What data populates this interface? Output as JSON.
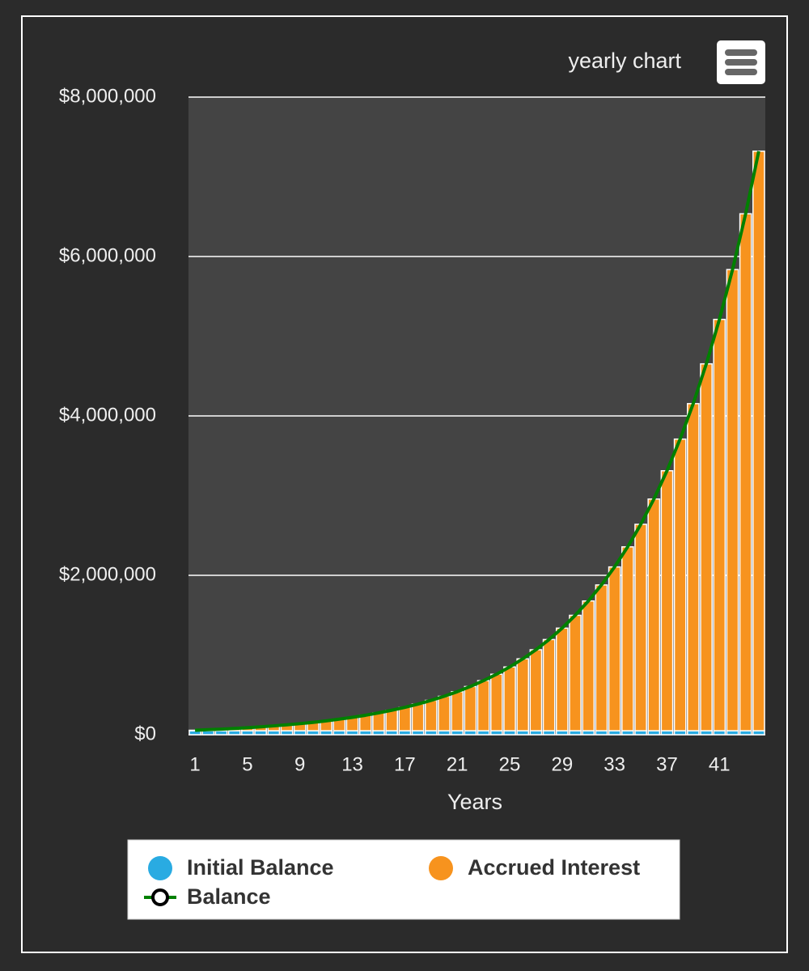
{
  "chart_data": {
    "type": "bar",
    "stacked": true,
    "title": "yearly chart",
    "x_label": "Years",
    "categories": [
      1,
      null,
      null,
      null,
      5,
      null,
      null,
      null,
      9,
      null,
      null,
      null,
      13,
      null,
      null,
      null,
      17,
      null,
      null,
      null,
      21,
      null,
      null,
      null,
      25,
      null,
      null,
      null,
      29,
      null,
      null,
      null,
      33,
      null,
      null,
      null,
      37,
      null,
      null,
      null,
      41,
      null,
      null,
      null
    ],
    "series": [
      {
        "name": "Initial Balance",
        "type": "bar",
        "color": "#29abe2",
        "values": [
          50000,
          50000,
          50000,
          50000,
          50000,
          50000,
          50000,
          50000,
          50000,
          50000,
          50000,
          50000,
          50000,
          50000,
          50000,
          50000,
          50000,
          50000,
          50000,
          50000,
          50000,
          50000,
          50000,
          50000,
          50000,
          50000,
          50000,
          50000,
          50000,
          50000,
          50000,
          50000,
          50000,
          50000,
          50000,
          50000,
          50000,
          50000,
          50000,
          50000,
          50000,
          50000,
          50000,
          50000
        ]
      },
      {
        "name": "Accrued Interest",
        "type": "bar",
        "color": "#f7931e",
        "values": [
          6000,
          13000,
          20000,
          29000,
          38000,
          49000,
          61000,
          74000,
          89000,
          105000,
          124000,
          145000,
          168000,
          194000,
          224000,
          257000,
          293000,
          334000,
          381000,
          432000,
          490000,
          555000,
          628000,
          709000,
          800000,
          902000,
          1016000,
          1144000,
          1287000,
          1448000,
          1628000,
          1829000,
          2055000,
          2307000,
          2590000,
          2907000,
          3262000,
          3659000,
          4104000,
          4603000,
          5161000,
          5786000,
          6486000,
          7271000
        ]
      },
      {
        "name": "Balance",
        "type": "line",
        "color": "#008000",
        "values": [
          56000,
          63000,
          70000,
          79000,
          88000,
          99000,
          111000,
          124000,
          139000,
          155000,
          174000,
          195000,
          218000,
          244000,
          274000,
          307000,
          343000,
          384000,
          431000,
          482000,
          540000,
          605000,
          678000,
          759000,
          850000,
          952000,
          1066000,
          1194000,
          1337000,
          1498000,
          1678000,
          1879000,
          2105000,
          2357000,
          2640000,
          2957000,
          3312000,
          3709000,
          4154000,
          4653000,
          5211000,
          5836000,
          6536000,
          7321000
        ]
      }
    ],
    "ylim": [
      0,
      8000000
    ],
    "yticks": [
      {
        "value": 0,
        "label": "$0"
      },
      {
        "value": 2000000,
        "label": "$2,000,000"
      },
      {
        "value": 4000000,
        "label": "$4,000,000"
      },
      {
        "value": 6000000,
        "label": "$6,000,000"
      },
      {
        "value": 8000000,
        "label": "$8,000,000"
      }
    ],
    "grid": true,
    "legend": "bottom"
  }
}
